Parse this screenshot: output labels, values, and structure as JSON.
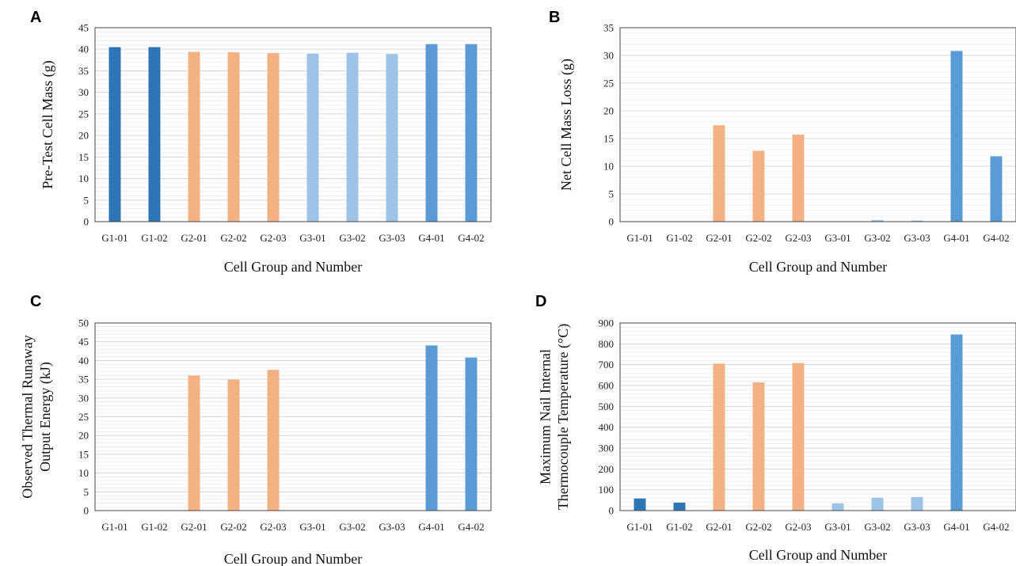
{
  "colors": {
    "G1": "#2E75B6",
    "G2": "#F4B183",
    "G3": "#9DC3E6",
    "G4": "#5B9BD5"
  },
  "chart_data": [
    {
      "panel": "A",
      "type": "bar",
      "categories": [
        "G1-01",
        "G1-02",
        "G2-01",
        "G2-02",
        "G2-03",
        "G3-01",
        "G3-02",
        "G3-03",
        "G4-01",
        "G4-02"
      ],
      "values": [
        40.5,
        40.5,
        39.4,
        39.3,
        39.1,
        39.0,
        39.2,
        38.9,
        41.2,
        41.2
      ],
      "xlabel": "Cell Group and Number",
      "ylabel": [
        "Pre-Test Cell Mass (g)"
      ],
      "ylim": [
        0,
        45
      ],
      "yticks": [
        0,
        5,
        10,
        15,
        20,
        25,
        30,
        35,
        40,
        45
      ],
      "grid": true
    },
    {
      "panel": "B",
      "type": "bar",
      "categories": [
        "G1-01",
        "G1-02",
        "G2-01",
        "G2-02",
        "G2-03",
        "G3-01",
        "G3-02",
        "G3-03",
        "G4-01",
        "G4-02"
      ],
      "values": [
        0,
        0,
        17.4,
        12.8,
        15.7,
        0,
        0.3,
        0.2,
        30.8,
        11.8
      ],
      "xlabel": "Cell Group and Number",
      "ylabel": [
        "Net Cell Mass Loss (g)"
      ],
      "ylim": [
        0,
        35
      ],
      "yticks": [
        0,
        5,
        10,
        15,
        20,
        25,
        30,
        35
      ],
      "grid": true
    },
    {
      "panel": "C",
      "type": "bar",
      "categories": [
        "G1-01",
        "G1-02",
        "G2-01",
        "G2-02",
        "G2-03",
        "G3-01",
        "G3-02",
        "G3-03",
        "G4-01",
        "G4-02"
      ],
      "values": [
        0,
        0,
        36.0,
        34.9,
        37.5,
        0,
        0,
        0,
        44.0,
        40.8
      ],
      "xlabel": "Cell Group and Number",
      "ylabel": [
        "Observed Thermal Runaway",
        "Output Energy (kJ)"
      ],
      "ylim": [
        0,
        50
      ],
      "yticks": [
        0,
        5,
        10,
        15,
        20,
        25,
        30,
        35,
        40,
        45,
        50
      ],
      "grid": true
    },
    {
      "panel": "D",
      "type": "bar",
      "categories": [
        "G1-01",
        "G1-02",
        "G2-01",
        "G2-02",
        "G2-03",
        "G3-01",
        "G3-02",
        "G3-03",
        "G4-01",
        "G4-02"
      ],
      "values": [
        58,
        38,
        705,
        615,
        708,
        35,
        62,
        65,
        845,
        0
      ],
      "xlabel": "Cell Group and Number",
      "ylabel": [
        "Maximum Nail Internal",
        "Thermocouple Temperature (°C)"
      ],
      "ylim": [
        0,
        900
      ],
      "yticks": [
        0,
        100,
        200,
        300,
        400,
        500,
        600,
        700,
        800,
        900
      ],
      "grid": true
    }
  ]
}
